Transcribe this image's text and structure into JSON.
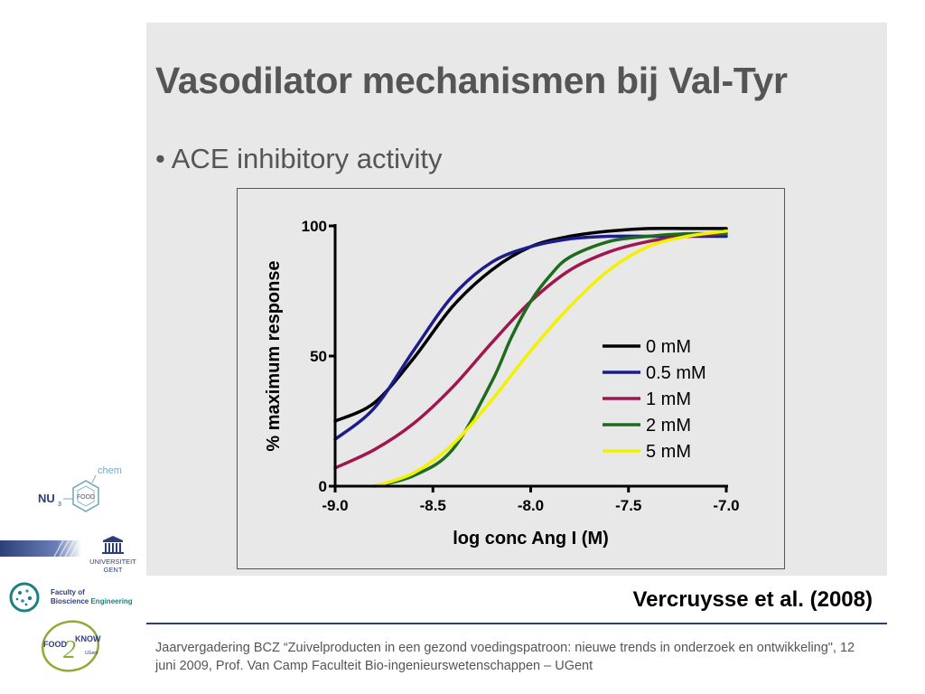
{
  "slide": {
    "title": "Vasodilator mechanismen bij Val-Tyr",
    "bullet": "• ACE inhibitory activity",
    "citation": "Vercruysse et al. (2008)",
    "footer": "Jaarvergadering BCZ “Zuivelproducten in een gezond voedingspatroon: nieuwe trends in onderzoek en ontwikkeling\", 12 juni 2009, Prof. Van Camp  Faculteit Bio-ingenieurswetenschappen – UGent"
  },
  "logos": {
    "nu3": {
      "nu": "NU",
      "sub": "3",
      "chem": "chem",
      "food": "FOOD"
    },
    "ugent": {
      "line1": "UNIVERSITEIT",
      "line2": "GENT"
    },
    "fbe": {
      "line1": "Faculty of",
      "line2a": "Bioscience ",
      "line2b": "Engineering"
    },
    "f2k": {
      "food": "FOOD",
      "two": "2",
      "know": "KNOW",
      "ugent": "UGent"
    }
  },
  "chart_data": {
    "type": "line",
    "title": "",
    "xlabel": "log conc Ang I (M)",
    "ylabel": "% maximum response",
    "xlim": [
      -9.0,
      -7.0
    ],
    "ylim": [
      0,
      100
    ],
    "xticks": [
      "-9.0",
      "-8.5",
      "-8.0",
      "-7.5",
      "-7.0"
    ],
    "yticks": [
      "0",
      "50",
      "100"
    ],
    "legend_position": "center-right",
    "grid": false,
    "series": [
      {
        "name": "0 mM",
        "color": "#000000",
        "x": [
          -9.0,
          -8.8,
          -8.6,
          -8.4,
          -8.2,
          -8.0,
          -7.8,
          -7.6,
          -7.4,
          -7.2,
          -7.0
        ],
        "y": [
          25,
          32,
          49,
          69,
          83,
          92,
          96,
          98,
          99,
          99,
          99
        ]
      },
      {
        "name": "0.5 mM",
        "color": "#1c1c8c",
        "x": [
          -9.0,
          -8.8,
          -8.6,
          -8.4,
          -8.2,
          -8.0,
          -7.8,
          -7.6,
          -7.4,
          -7.2,
          -7.0
        ],
        "y": [
          18,
          30,
          52,
          73,
          86,
          92,
          95,
          96,
          96,
          96,
          96
        ]
      },
      {
        "name": "1 mM",
        "color": "#a0174f",
        "x": [
          -9.0,
          -8.8,
          -8.6,
          -8.4,
          -8.2,
          -8.0,
          -7.8,
          -7.6,
          -7.4,
          -7.2,
          -7.0
        ],
        "y": [
          7,
          14,
          24,
          38,
          55,
          71,
          83,
          90,
          94,
          96,
          97
        ]
      },
      {
        "name": "2 mM",
        "color": "#1e6b1e",
        "x": [
          -8.8,
          -8.6,
          -8.4,
          -8.2,
          -8.1,
          -8.0,
          -7.9,
          -7.8,
          -7.6,
          -7.4,
          -7.2,
          -7.0
        ],
        "y": [
          0,
          4,
          14,
          40,
          57,
          71,
          81,
          88,
          94,
          96,
          97,
          97
        ]
      },
      {
        "name": "5 mM",
        "color": "#f2f200",
        "x": [
          -8.8,
          -8.6,
          -8.4,
          -8.2,
          -8.0,
          -7.8,
          -7.6,
          -7.4,
          -7.2,
          -7.0
        ],
        "y": [
          0,
          5,
          16,
          33,
          52,
          69,
          83,
          92,
          96,
          98
        ]
      }
    ]
  }
}
